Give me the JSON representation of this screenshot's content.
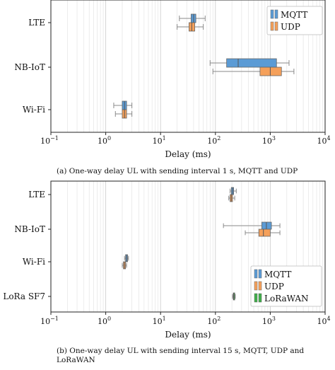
{
  "chart_data": [
    {
      "type": "boxplot",
      "orientation": "horizontal",
      "xscale": "log",
      "xlim": [
        0.1,
        10000
      ],
      "xticks": [
        0.1,
        1,
        10,
        100,
        1000,
        10000
      ],
      "xtick_labels": [
        "10",
        "10",
        "10",
        "10",
        "10",
        "10"
      ],
      "xtick_exponents": [
        "−1",
        "0",
        "1",
        "2",
        "3",
        "4"
      ],
      "xlabel": "Delay (ms)",
      "categories": [
        "LTE",
        "NB-IoT",
        "Wi-Fi"
      ],
      "grid": true,
      "legend_position": "top-right",
      "caption": "(a) One-way delay UL with sending interval 1 s, MQTT and UDP",
      "series": [
        {
          "name": "MQTT",
          "color": "#5b9bd5",
          "boxes": [
            {
              "category": "LTE",
              "whisker_low": 22,
              "q1": 36,
              "median": 40,
              "q3": 44,
              "whisker_high": 65
            },
            {
              "category": "NB-IoT",
              "whisker_low": 80,
              "q1": 160,
              "median": 260,
              "q3": 1300,
              "whisker_high": 2200
            },
            {
              "category": "Wi-Fi",
              "whisker_low": 1.4,
              "q1": 2.0,
              "median": 2.2,
              "q3": 2.4,
              "whisker_high": 3.0
            }
          ]
        },
        {
          "name": "UDP",
          "color": "#f5a05a",
          "boxes": [
            {
              "category": "LTE",
              "whisker_low": 20,
              "q1": 33,
              "median": 37,
              "q3": 42,
              "whisker_high": 60
            },
            {
              "category": "NB-IoT",
              "whisker_low": 90,
              "q1": 650,
              "median": 1000,
              "q3": 1600,
              "whisker_high": 2700
            },
            {
              "category": "Wi-Fi",
              "whisker_low": 1.5,
              "q1": 2.0,
              "median": 2.2,
              "q3": 2.4,
              "whisker_high": 3.0
            }
          ]
        }
      ]
    },
    {
      "type": "boxplot",
      "orientation": "horizontal",
      "xscale": "log",
      "xlim": [
        0.1,
        10000
      ],
      "xticks": [
        0.1,
        1,
        10,
        100,
        1000,
        10000
      ],
      "xtick_labels": [
        "10",
        "10",
        "10",
        "10",
        "10",
        "10"
      ],
      "xtick_exponents": [
        "−1",
        "0",
        "1",
        "2",
        "3",
        "4"
      ],
      "xlabel": "Delay (ms)",
      "categories": [
        "LTE",
        "NB-IoT",
        "Wi-Fi",
        "LoRa SF7"
      ],
      "grid": true,
      "legend_position": "bottom-right",
      "caption": "(b) One-way delay UL with sending interval 15 s, MQTT, UDP and LoRaWAN",
      "series": [
        {
          "name": "MQTT",
          "color": "#5b9bd5",
          "boxes": [
            {
              "category": "LTE",
              "whisker_low": 185,
              "q1": 195,
              "median": 205,
              "q3": 215,
              "whisker_high": 240
            },
            {
              "category": "NB-IoT",
              "whisker_low": 140,
              "q1": 700,
              "median": 850,
              "q3": 1050,
              "whisker_high": 1500
            },
            {
              "category": "Wi-Fi",
              "whisker_low": 2.2,
              "q1": 2.3,
              "median": 2.4,
              "q3": 2.5,
              "whisker_high": 2.6
            }
          ]
        },
        {
          "name": "UDP",
          "color": "#f5a05a",
          "boxes": [
            {
              "category": "LTE",
              "whisker_low": 175,
              "q1": 185,
              "median": 195,
              "q3": 205,
              "whisker_high": 225
            },
            {
              "category": "NB-IoT",
              "whisker_low": 350,
              "q1": 620,
              "median": 750,
              "q3": 1000,
              "whisker_high": 1500
            },
            {
              "category": "Wi-Fi",
              "whisker_low": 2.0,
              "q1": 2.1,
              "median": 2.2,
              "q3": 2.3,
              "whisker_high": 2.4
            }
          ]
        },
        {
          "name": "LoRaWAN",
          "color": "#3fae49",
          "boxes": [
            {
              "category": "LoRa SF7",
              "whisker_low": 205,
              "q1": 212,
              "median": 216,
              "q3": 220,
              "whisker_high": 230
            }
          ]
        }
      ]
    }
  ]
}
